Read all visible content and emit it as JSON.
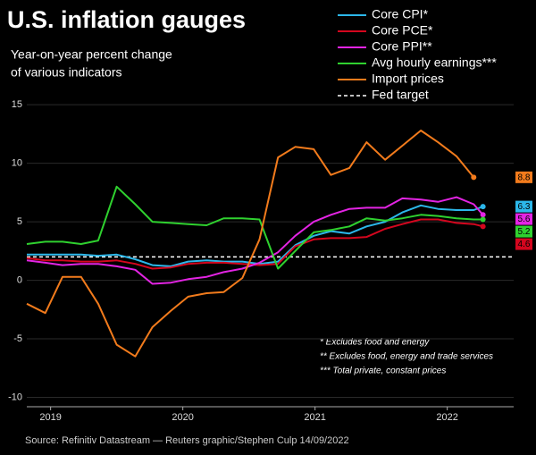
{
  "chart_data": {
    "type": "line",
    "title": "U.S. inflation gauges",
    "subtitle": [
      "Year-on-year percent change",
      "of various indicators"
    ],
    "x": [
      2018.82,
      2018.96,
      2019.09,
      2019.23,
      2019.36,
      2019.5,
      2019.64,
      2019.77,
      2019.91,
      2020.04,
      2020.18,
      2020.31,
      2020.45,
      2020.58,
      2020.72,
      2020.85,
      2020.99,
      2021.12,
      2021.26,
      2021.39,
      2021.53,
      2021.66,
      2021.8,
      2021.93,
      2022.07,
      2022.2,
      2022.27
    ],
    "series": [
      {
        "name": "Core CPI*",
        "color": "#2cb7ea",
        "values": [
          2.2,
          2.2,
          2.2,
          2.2,
          2.1,
          2.2,
          1.8,
          1.3,
          1.2,
          1.6,
          1.7,
          1.6,
          1.6,
          1.4,
          1.6,
          3.0,
          3.8,
          4.2,
          4.0,
          4.6,
          5.0,
          5.8,
          6.4,
          6.1,
          6.0,
          6.0,
          6.3
        ]
      },
      {
        "name": "Core PCE*",
        "color": "#d4061e",
        "values": [
          1.9,
          1.7,
          1.7,
          1.6,
          1.6,
          1.7,
          1.4,
          1.0,
          1.1,
          1.4,
          1.5,
          1.5,
          1.4,
          1.3,
          1.4,
          2.9,
          3.5,
          3.6,
          3.6,
          3.7,
          4.4,
          4.8,
          5.2,
          5.2,
          4.9,
          4.8,
          4.6
        ]
      },
      {
        "name": "Core PPI**",
        "color": "#e324e3",
        "values": [
          1.7,
          1.5,
          1.3,
          1.4,
          1.4,
          1.2,
          0.9,
          -0.3,
          -0.2,
          0.1,
          0.3,
          0.7,
          1.0,
          1.5,
          2.4,
          3.8,
          5.0,
          5.6,
          6.1,
          6.2,
          6.2,
          7.0,
          6.9,
          6.7,
          7.1,
          6.5,
          5.6
        ]
      },
      {
        "name": "Avg hourly earnings***",
        "color": "#2fd12f",
        "values": [
          3.1,
          3.3,
          3.3,
          3.1,
          3.4,
          8.0,
          6.5,
          5.0,
          4.9,
          4.8,
          4.7,
          5.3,
          5.3,
          5.2,
          1.0,
          2.5,
          4.1,
          4.3,
          4.6,
          5.3,
          5.1,
          5.3,
          5.6,
          5.5,
          5.3,
          5.2,
          5.2
        ]
      },
      {
        "name": "Import prices",
        "color": "#f27b1c",
        "values": [
          -2.0,
          -2.8,
          0.3,
          0.3,
          -2.0,
          -5.5,
          -6.5,
          -4.0,
          -2.6,
          -1.4,
          -1.1,
          -1.0,
          0.2,
          3.5,
          10.5,
          11.4,
          11.2,
          9.0,
          9.6,
          11.8,
          10.3,
          11.5,
          12.8,
          11.8,
          10.6,
          8.8,
          null
        ]
      }
    ],
    "reference_line": {
      "name": "Fed target",
      "value": 2,
      "color": "#ffffff"
    },
    "xlim": [
      2018.82,
      2022.34
    ],
    "xticks": [
      2019,
      2020,
      2021,
      2022
    ],
    "ylim": [
      -10.8,
      15.7
    ],
    "yticks": [
      15,
      10,
      5,
      0,
      -5,
      -10
    ],
    "grid": true,
    "notes": [
      "* Excludes food and energy",
      "** Excludes food, energy and trade services",
      "*** Total private, constant prices"
    ],
    "source": "Source: Refinitiv Datastream — Reuters graphic/Stephen Culp 14/09/2022"
  }
}
